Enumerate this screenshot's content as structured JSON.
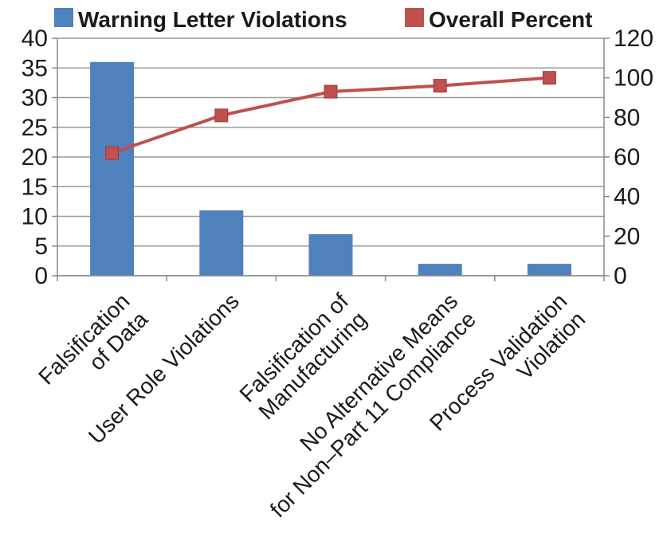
{
  "chart_data": {
    "type": "bar",
    "categories": [
      [
        "Falsification",
        "of Data"
      ],
      [
        "User Role Violations"
      ],
      [
        "Falsification of",
        "Manufacturing"
      ],
      [
        "No Alternative Means",
        "for Non–Part 11 Compliance"
      ],
      [
        "Process Validation",
        "Violation"
      ]
    ],
    "series": [
      {
        "name": "Warning Letter Violations",
        "type": "bar",
        "axis": "left",
        "color": "#4f81bd",
        "values": [
          36,
          11,
          7,
          2,
          2
        ]
      },
      {
        "name": "Overall Percent",
        "type": "line",
        "axis": "right",
        "color": "#c0504d",
        "values": [
          62,
          81,
          93,
          96,
          100
        ]
      }
    ],
    "y_left": {
      "min": 0,
      "max": 40,
      "step": 5
    },
    "y_right": {
      "min": 0,
      "max": 120,
      "step": 20
    },
    "grid": true,
    "legend_position": "top"
  }
}
